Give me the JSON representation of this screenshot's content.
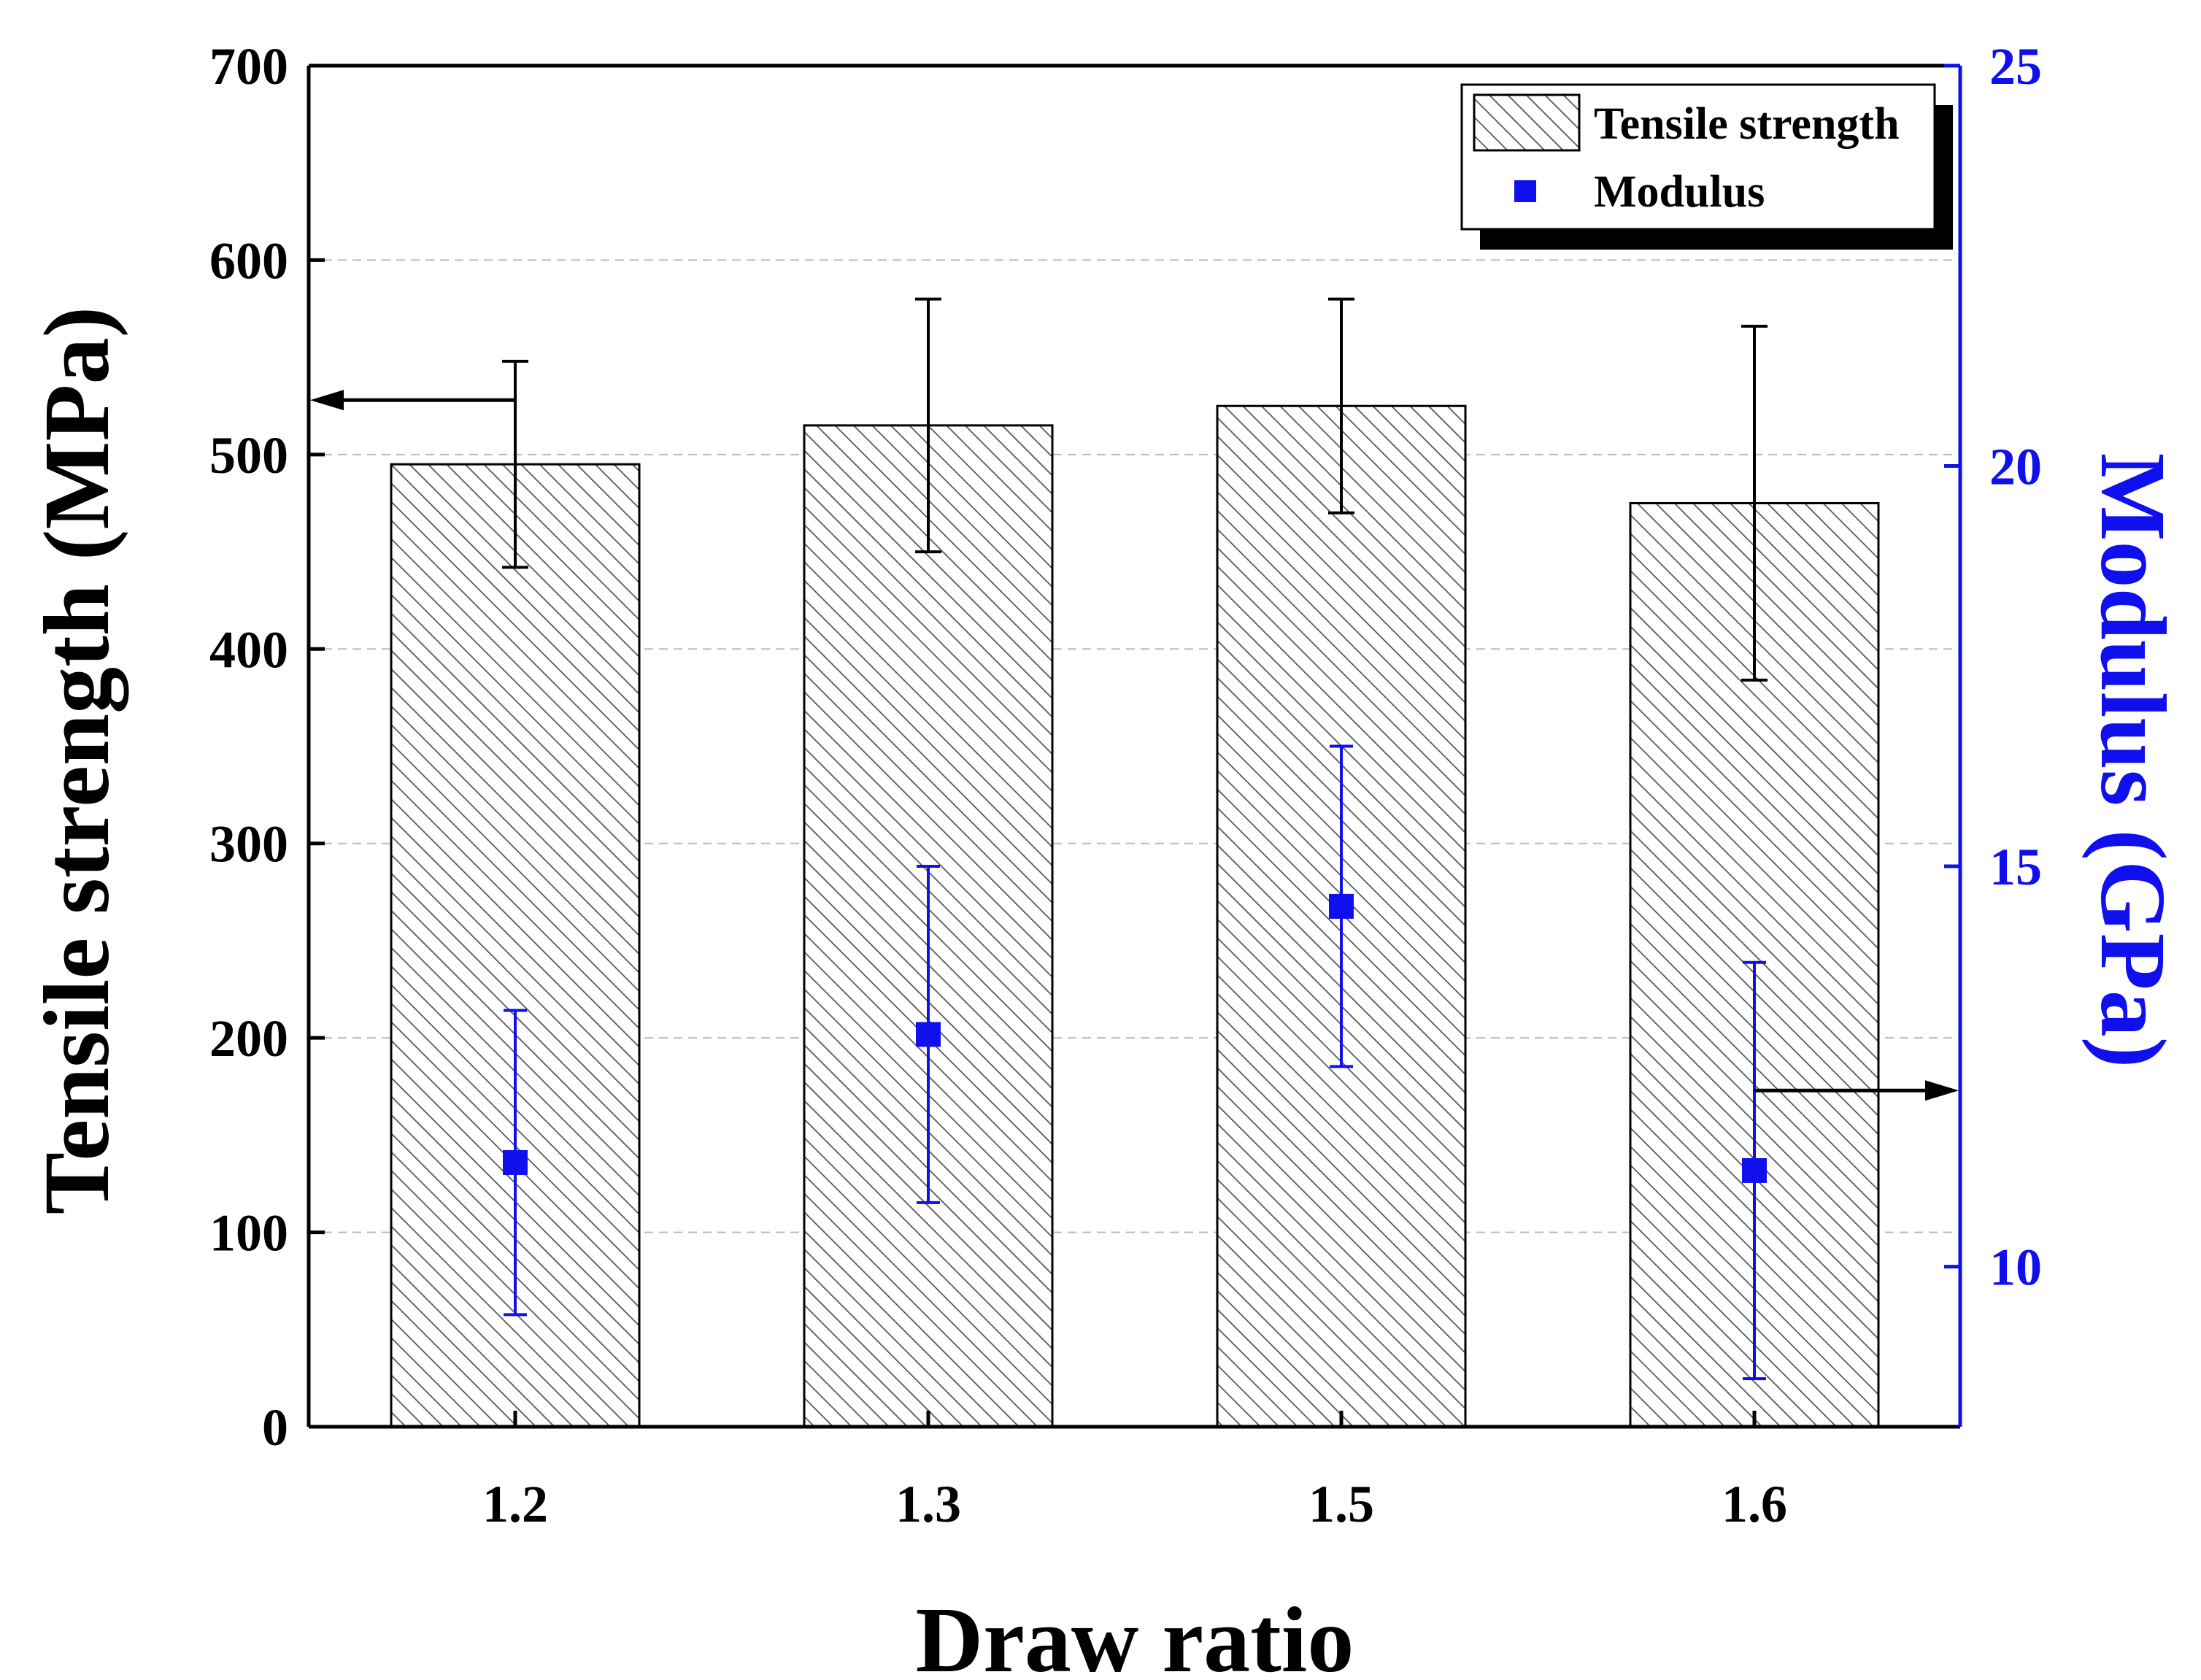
{
  "chart_data": {
    "type": "bar",
    "categories": [
      "1.2",
      "1.3",
      "1.5",
      "1.6"
    ],
    "xlabel": "Draw ratio",
    "ylabel_left": "Tensile strength (MPa)",
    "ylabel_right": "Modulus (GPa)",
    "ylim_left": [
      0,
      700
    ],
    "yticks_left": [
      "0",
      "100",
      "200",
      "300",
      "400",
      "500",
      "600",
      "700"
    ],
    "ylim_right": [
      8,
      25
    ],
    "yticks_right": [
      "10",
      "15",
      "20",
      "25"
    ],
    "grid": "horizontal dashed",
    "legend_position": "top-right",
    "series": [
      {
        "name": "Tensile strength",
        "type": "bar",
        "axis": "left",
        "pattern": "diagonal-hatch",
        "values": [
          495,
          515,
          525,
          475
        ],
        "errors": [
          53,
          65,
          55,
          91
        ]
      },
      {
        "name": "Modulus",
        "type": "scatter",
        "axis": "right",
        "marker": "square",
        "values": [
          11.3,
          12.9,
          14.5,
          11.2
        ],
        "errors": [
          1.9,
          2.1,
          2.0,
          2.6
        ]
      }
    ],
    "annotations": [
      {
        "type": "arrow",
        "from_category": "1.2",
        "value": 528,
        "direction": "left",
        "points_to": "left-axis"
      },
      {
        "type": "arrow",
        "from_category": "1.6",
        "value": 12.2,
        "direction": "right",
        "points_to": "right-axis"
      }
    ]
  },
  "colors": {
    "left_axis": "#000000",
    "right_axis": "#1010ee",
    "modulus": "#1010ee",
    "bar_fill": "#ffffff",
    "hatch": "#555555",
    "grid": "#bbbbbb"
  }
}
